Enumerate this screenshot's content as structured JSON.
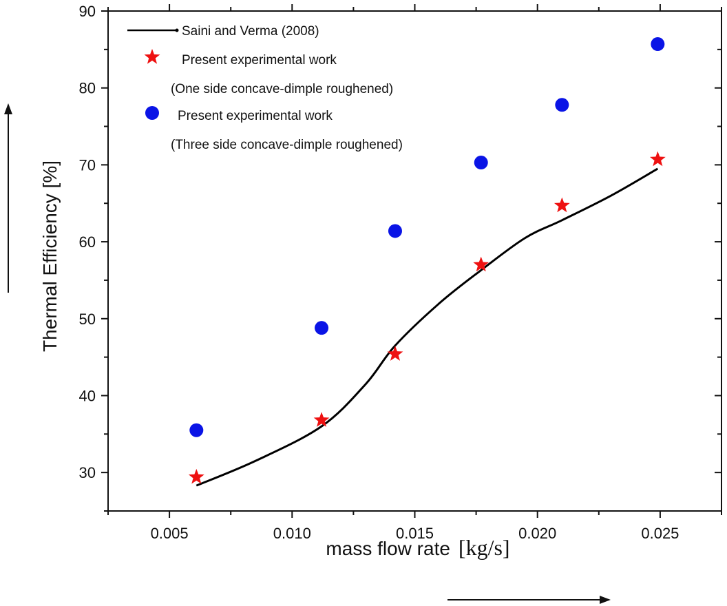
{
  "chart_data": {
    "type": "scatter",
    "xlabel": "mass flow rate",
    "xlabel_unit": "[kg/s]",
    "ylabel": "Thermal Efficiency [%]",
    "xlim": [
      0.0025,
      0.0275
    ],
    "ylim": [
      25,
      90
    ],
    "x_ticks": [
      0.005,
      0.01,
      0.015,
      0.02,
      0.025
    ],
    "x_tick_labels": [
      "0.005",
      "0.010",
      "0.015",
      "0.020",
      "0.025"
    ],
    "y_ticks": [
      30,
      40,
      50,
      60,
      70,
      80,
      90
    ],
    "y_tick_labels": [
      "30",
      "40",
      "50",
      "60",
      "70",
      "80",
      "90"
    ],
    "grid": false,
    "legend_position": "top-left",
    "series": [
      {
        "name": "Saini and Verma (2008)",
        "marker": "line",
        "color": "#000000",
        "x": [
          0.0061,
          0.0085,
          0.0112,
          0.013,
          0.0142,
          0.016,
          0.0177,
          0.0195,
          0.021,
          0.023,
          0.0249
        ],
        "y": [
          28.3,
          31.5,
          36.0,
          41.5,
          46.5,
          52.0,
          56.3,
          60.5,
          62.8,
          66.0,
          69.5
        ]
      },
      {
        "name": "Present experimental work",
        "name_line2": "(One side concave-dimple roughened)",
        "marker": "star",
        "color": "#ee1111",
        "x": [
          0.0061,
          0.0112,
          0.0142,
          0.0177,
          0.021,
          0.0249
        ],
        "y": [
          29.4,
          36.8,
          45.4,
          57.0,
          64.7,
          70.7
        ]
      },
      {
        "name": "Present experimental work",
        "name_line2": "(Three side concave-dimple roughened)",
        "marker": "circle",
        "color": "#0a14e6",
        "x": [
          0.0061,
          0.0112,
          0.0142,
          0.0177,
          0.021,
          0.0249
        ],
        "y": [
          35.5,
          48.8,
          61.4,
          70.3,
          77.8,
          85.7
        ]
      }
    ]
  }
}
